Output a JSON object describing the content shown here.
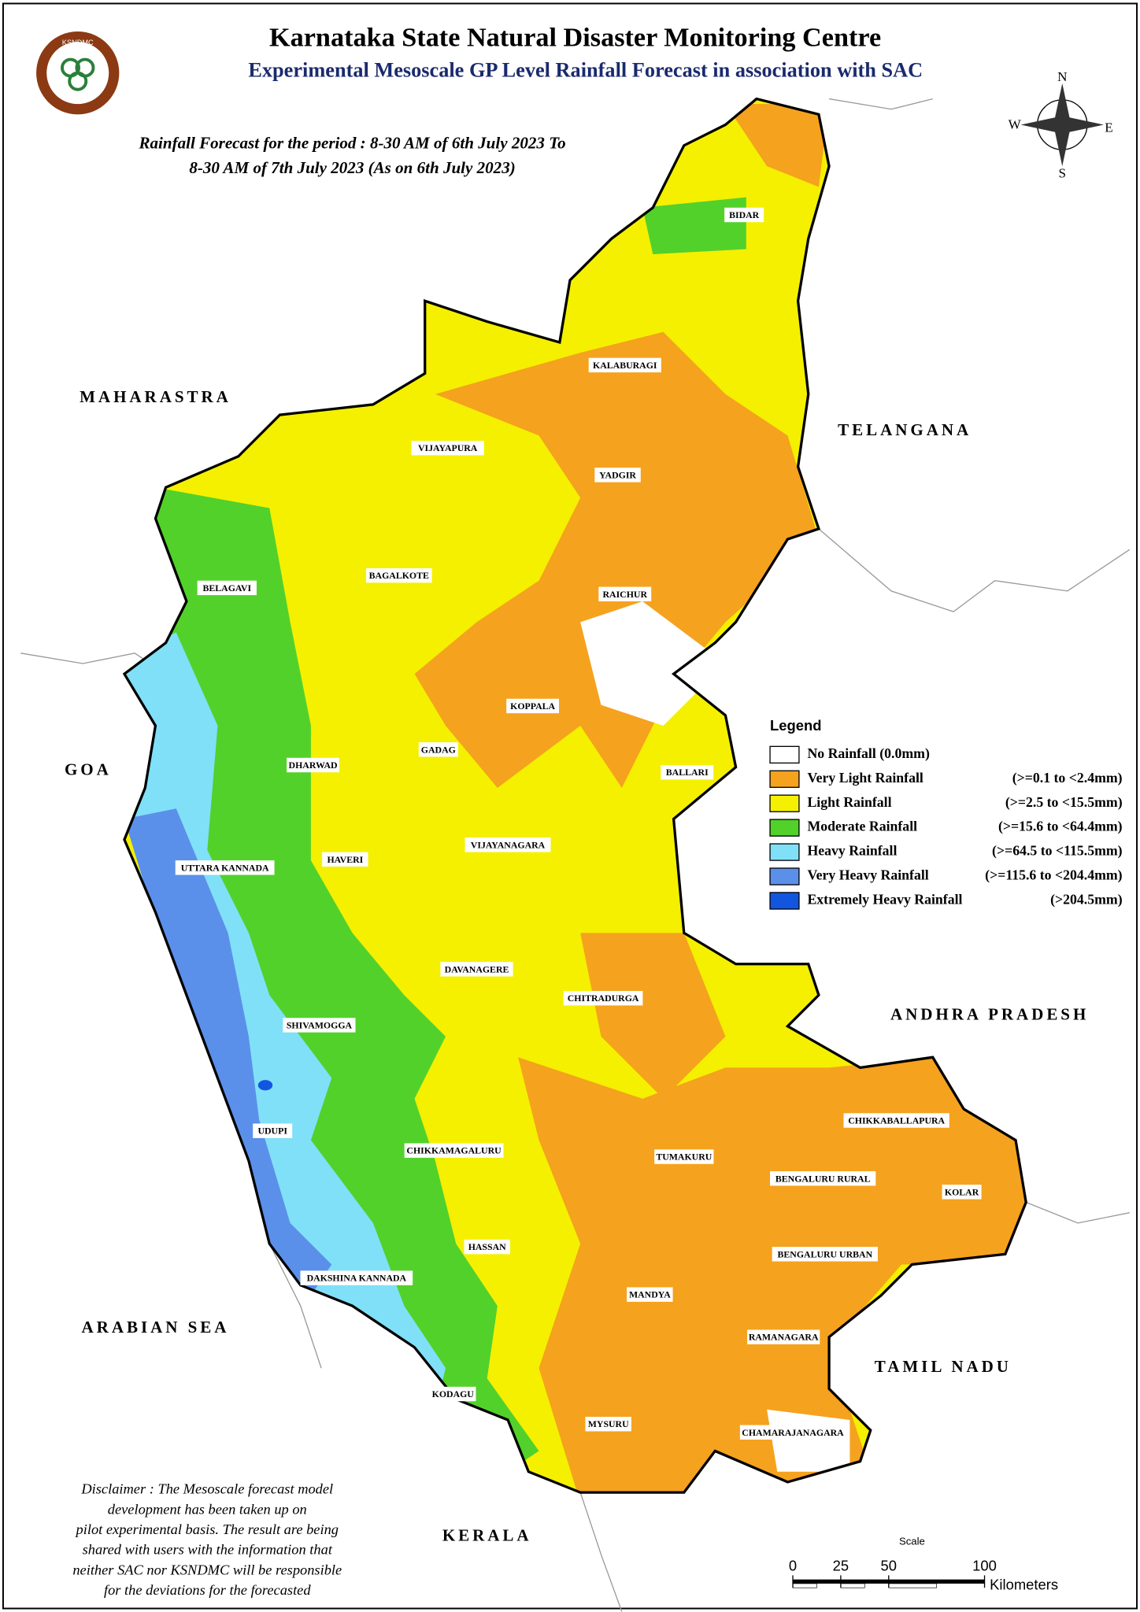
{
  "header": {
    "title": "Karnataka State Natural Disaster Monitoring Centre",
    "subtitle": "Experimental Mesoscale GP Level Rainfall Forecast in association with SAC",
    "logo_text": "KSNDMC"
  },
  "forecast_period": {
    "line1": "Rainfall Forecast for the period : 8-30 AM of 6th July 2023 To",
    "line2": "8-30 AM of 7th July 2023 (As on 6th July 2023)"
  },
  "compass": {
    "north": "N",
    "east": "E",
    "south": "S",
    "west": "W"
  },
  "neighbors": [
    "MAHARASTRA",
    "TELANGANA",
    "GOA",
    "ANDHRA PRADESH",
    "ARABIAN SEA",
    "TAMIL NADU",
    "KERALA"
  ],
  "districts": [
    "BIDAR",
    "KALABURAGI",
    "VIJAYAPURA",
    "YADGIR",
    "BAGALKOTE",
    "RAICHUR",
    "BELAGAVI",
    "KOPPALA",
    "GADAG",
    "DHARWAD",
    "BALLARI",
    "VIJAYANAGARA",
    "HAVERI",
    "UTTARA KANNADA",
    "DAVANAGERE",
    "CHITRADURGA",
    "SHIVAMOGGA",
    "UDUPI",
    "CHIKKAMAGALURU",
    "TUMAKURU",
    "CHIKKABALLAPURA",
    "BENGALURU RURAL",
    "KOLAR",
    "HASSAN",
    "BENGALURU URBAN",
    "DAKSHINA KANNADA",
    "MANDYA",
    "RAMANAGARA",
    "KODAGU",
    "MYSURU",
    "CHAMARAJANAGARA"
  ],
  "legend": {
    "title": "Legend",
    "items": [
      {
        "label": "No Rainfall (0.0mm)",
        "color": "#ffffff"
      },
      {
        "label": "Very Light Rainfall",
        "range": "(>=0.1 to <2.4mm)",
        "color": "#f5a21e"
      },
      {
        "label": "Light Rainfall",
        "range": "(>=2.5 to <15.5mm)",
        "color": "#f4f000"
      },
      {
        "label": "Moderate Rainfall",
        "range": "(>=15.6 to <64.4mm)",
        "color": "#52d12b"
      },
      {
        "label": "Heavy Rainfall",
        "range": "(>=64.5 to <115.5mm)",
        "color": "#80e0f8"
      },
      {
        "label": "Very Heavy Rainfall",
        "range": "(>=115.6 to <204.4mm)",
        "color": "#5b90ea"
      },
      {
        "label": "Extremely Heavy Rainfall",
        "range": "(>204.5mm)",
        "color": "#1256e0"
      }
    ]
  },
  "scale": {
    "title": "Scale",
    "ticks": [
      0,
      25,
      50,
      100
    ],
    "unit": "Kilometers"
  },
  "disclaimer": [
    "Disclaimer : The Mesoscale forecast model",
    "development has been taken up on",
    "pilot experimental basis. The result are being",
    "shared with users with the information that",
    "neither SAC nor KSNDMC will be responsible",
    "for the deviations for the forecasted"
  ]
}
